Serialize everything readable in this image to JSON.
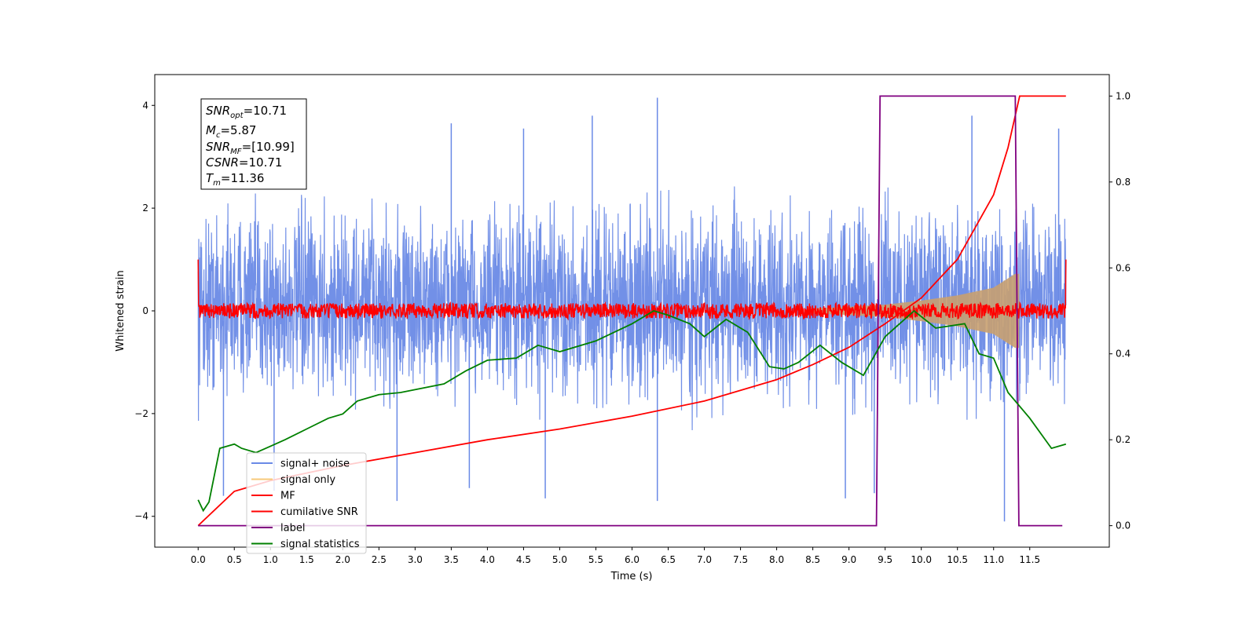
{
  "chart_data": {
    "type": "line",
    "xlabel": "Time (s)",
    "ylabel": "Whitened strain",
    "xlim": [
      -0.6,
      12.6
    ],
    "ylim": [
      -4.6,
      4.6
    ],
    "ylim_right": [
      -0.05,
      1.05
    ],
    "x_ticks": [
      "0.0",
      "0.5",
      "1.0",
      "1.5",
      "2.0",
      "2.5",
      "3.0",
      "3.5",
      "4.0",
      "4.5",
      "5.0",
      "5.5",
      "6.0",
      "6.5",
      "7.0",
      "7.5",
      "8.0",
      "8.5",
      "9.0",
      "9.5",
      "10.0",
      "10.5",
      "11.0",
      "11.5"
    ],
    "y_ticks_left": [
      "4",
      "2",
      "0",
      "−2",
      "−4"
    ],
    "y_ticks_right": [
      "1.0",
      "0.8",
      "0.6",
      "0.4",
      "0.2",
      "0.0"
    ],
    "annotation": {
      "snr_opt": {
        "sym": "SNR",
        "sub": "opt",
        "value": "=10.71"
      },
      "mc": {
        "sym": "M",
        "sub": "c",
        "value": "=5.87"
      },
      "snr_mf": {
        "sym": "SNR",
        "sub": "MF",
        "value": "=[10.99]"
      },
      "csnr": {
        "sym": "CSNR",
        "sub": "",
        "value": "=10.71"
      },
      "tm": {
        "sym": "T",
        "sub": "m",
        "value": "=11.36"
      }
    },
    "legend": {
      "placement": "lower-left",
      "entries": [
        {
          "label": "signal+ noise",
          "color": "#6a8ae6"
        },
        {
          "label": "signal only",
          "color": "#f7c97a"
        },
        {
          "label": "MF",
          "color": "#ff0000"
        },
        {
          "label": "cumilative SNR",
          "color": "#ff0000"
        },
        {
          "label": "label",
          "color": "#800080"
        },
        {
          "label": "signal statistics",
          "color": "#008000"
        }
      ]
    },
    "series": [
      {
        "name": "signal+ noise",
        "axis": "left",
        "color": "#6a8ae6",
        "x_range": [
          0.0,
          12.0
        ],
        "band_upper": [
          [
            0.0,
            2.6
          ],
          [
            6.0,
            2.7
          ],
          [
            12.0,
            2.6
          ]
        ],
        "band_lower": [
          [
            0.0,
            -2.3
          ],
          [
            6.0,
            -2.5
          ],
          [
            12.0,
            -2.3
          ]
        ],
        "peaks": [
          [
            6.35,
            4.15
          ],
          [
            5.45,
            3.8
          ],
          [
            3.5,
            3.65
          ],
          [
            4.5,
            3.55
          ],
          [
            10.7,
            3.8
          ],
          [
            11.9,
            3.55
          ],
          [
            0.35,
            -3.6
          ],
          [
            6.35,
            -3.7
          ],
          [
            2.75,
            -3.7
          ],
          [
            11.15,
            -4.1
          ],
          [
            8.95,
            -3.65
          ],
          [
            4.8,
            -3.65
          ],
          [
            1.05,
            -3.5
          ],
          [
            9.35,
            -3.55
          ],
          [
            3.75,
            -3.45
          ]
        ]
      },
      {
        "name": "signal only",
        "axis": "left",
        "color": "#c8a070",
        "x_range": [
          8.5,
          11.35
        ],
        "amplitude_points": [
          [
            8.5,
            0.05
          ],
          [
            9.0,
            0.08
          ],
          [
            9.5,
            0.12
          ],
          [
            10.0,
            0.2
          ],
          [
            10.5,
            0.3
          ],
          [
            11.0,
            0.45
          ],
          [
            11.3,
            0.72
          ]
        ]
      },
      {
        "name": "MF",
        "axis": "left",
        "color": "#ff0000",
        "x_range": [
          0.0,
          12.0
        ],
        "baseline": 0.0,
        "noise_amplitude": 0.15,
        "edge_values": [
          [
            0.0,
            1.0
          ],
          [
            12.0,
            1.0
          ]
        ]
      },
      {
        "name": "cumilative SNR",
        "axis": "right",
        "color": "#ff0000",
        "points": [
          [
            0.0,
            0.0
          ],
          [
            0.5,
            0.08
          ],
          [
            1.0,
            0.105
          ],
          [
            2.0,
            0.14
          ],
          [
            3.0,
            0.17
          ],
          [
            4.0,
            0.2
          ],
          [
            5.0,
            0.225
          ],
          [
            6.0,
            0.255
          ],
          [
            7.0,
            0.29
          ],
          [
            8.0,
            0.34
          ],
          [
            8.5,
            0.375
          ],
          [
            9.0,
            0.415
          ],
          [
            9.5,
            0.47
          ],
          [
            10.0,
            0.53
          ],
          [
            10.5,
            0.62
          ],
          [
            11.0,
            0.77
          ],
          [
            11.2,
            0.88
          ],
          [
            11.36,
            1.0
          ],
          [
            12.0,
            1.0
          ]
        ]
      },
      {
        "name": "label",
        "axis": "right",
        "color": "#800080",
        "points": [
          [
            0.0,
            0.0
          ],
          [
            9.38,
            0.0
          ],
          [
            9.43,
            1.0
          ],
          [
            11.3,
            1.0
          ],
          [
            11.35,
            0.0
          ],
          [
            11.95,
            0.0
          ]
        ]
      },
      {
        "name": "signal statistics",
        "axis": "right",
        "color": "#008000",
        "points": [
          [
            0.0,
            0.06
          ],
          [
            0.07,
            0.035
          ],
          [
            0.15,
            0.055
          ],
          [
            0.3,
            0.18
          ],
          [
            0.5,
            0.19
          ],
          [
            0.6,
            0.18
          ],
          [
            0.8,
            0.17
          ],
          [
            1.0,
            0.185
          ],
          [
            1.2,
            0.2
          ],
          [
            1.5,
            0.225
          ],
          [
            1.8,
            0.25
          ],
          [
            2.0,
            0.26
          ],
          [
            2.2,
            0.29
          ],
          [
            2.5,
            0.305
          ],
          [
            2.8,
            0.31
          ],
          [
            3.1,
            0.32
          ],
          [
            3.4,
            0.33
          ],
          [
            3.7,
            0.36
          ],
          [
            4.0,
            0.385
          ],
          [
            4.4,
            0.39
          ],
          [
            4.7,
            0.42
          ],
          [
            5.0,
            0.405
          ],
          [
            5.5,
            0.43
          ],
          [
            6.0,
            0.47
          ],
          [
            6.3,
            0.5
          ],
          [
            6.5,
            0.49
          ],
          [
            6.8,
            0.47
          ],
          [
            7.0,
            0.44
          ],
          [
            7.3,
            0.48
          ],
          [
            7.6,
            0.45
          ],
          [
            7.9,
            0.37
          ],
          [
            8.1,
            0.365
          ],
          [
            8.3,
            0.38
          ],
          [
            8.6,
            0.42
          ],
          [
            8.9,
            0.38
          ],
          [
            9.2,
            0.35
          ],
          [
            9.5,
            0.44
          ],
          [
            9.9,
            0.5
          ],
          [
            10.2,
            0.46
          ],
          [
            10.6,
            0.47
          ],
          [
            10.8,
            0.4
          ],
          [
            11.0,
            0.39
          ],
          [
            11.2,
            0.31
          ],
          [
            11.5,
            0.25
          ],
          [
            11.8,
            0.18
          ],
          [
            12.0,
            0.19
          ]
        ]
      }
    ]
  }
}
